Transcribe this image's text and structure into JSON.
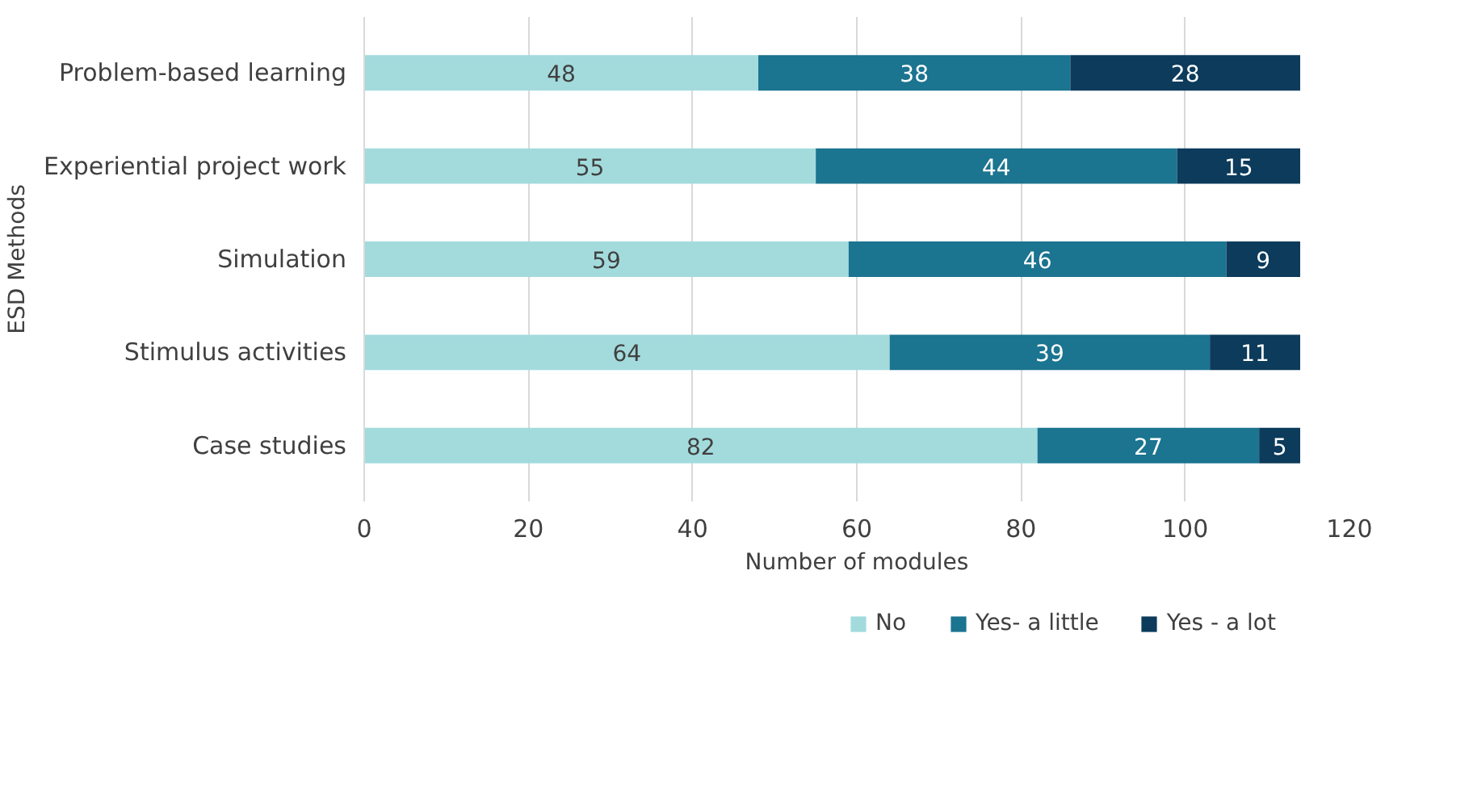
{
  "chart_data": {
    "type": "bar",
    "orientation": "horizontal",
    "stacked": true,
    "data_labels": true,
    "categories": [
      "Problem-based learning",
      "Experiential project work",
      "Simulation",
      "Stimulus activities",
      "Case studies"
    ],
    "series": [
      {
        "name": "No",
        "color": "#a3dbdd",
        "values": [
          48,
          55,
          59,
          64,
          82
        ]
      },
      {
        "name": "Yes- a little",
        "color": "#1b7490",
        "values": [
          38,
          44,
          46,
          39,
          27
        ]
      },
      {
        "name": "Yes - a lot",
        "color": "#0c3b5b",
        "values": [
          28,
          15,
          9,
          11,
          5
        ]
      }
    ],
    "xlim": [
      0,
      120
    ],
    "xticks": [
      0,
      20,
      40,
      60,
      80,
      100,
      120
    ],
    "xlabel": "Number of modules",
    "ylabel": "ESD Methods",
    "grid": "x",
    "legend": "bottom"
  }
}
